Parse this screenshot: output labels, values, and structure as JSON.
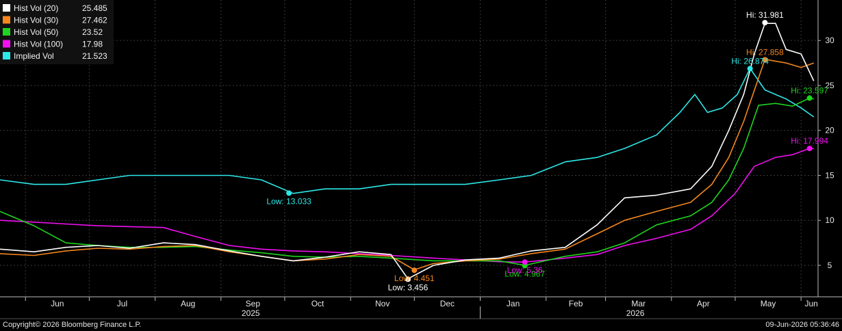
{
  "chart_data": {
    "type": "line",
    "x_range": [
      "2025-05-20",
      "2026-06-09"
    ],
    "ylim": [
      1.5,
      34.5
    ],
    "yticks": [
      5,
      10,
      15,
      20,
      25,
      30
    ],
    "grid": true,
    "legend_position": "top-left",
    "month_ticks": [
      {
        "label": "Jun",
        "date": "2025-06-01"
      },
      {
        "label": "Jul",
        "date": "2025-07-01"
      },
      {
        "label": "Aug",
        "date": "2025-08-01"
      },
      {
        "label": "Sep",
        "date": "2025-09-01"
      },
      {
        "label": "Oct",
        "date": "2025-10-01"
      },
      {
        "label": "Nov",
        "date": "2025-11-01"
      },
      {
        "label": "Dec",
        "date": "2025-12-01"
      },
      {
        "label": "Jan",
        "date": "2026-01-01"
      },
      {
        "label": "Feb",
        "date": "2026-02-01"
      },
      {
        "label": "Mar",
        "date": "2026-03-01"
      },
      {
        "label": "Apr",
        "date": "2026-04-01"
      },
      {
        "label": "May",
        "date": "2026-05-01"
      },
      {
        "label": "Jun",
        "date": "2026-06-01"
      }
    ],
    "year_labels": [
      {
        "label": "2025",
        "date": "2025-09-15"
      },
      {
        "label": "2026",
        "date": "2026-03-15"
      }
    ],
    "year_divider": "2026-01-01",
    "series": [
      {
        "name": "Hist Vol (20)",
        "last": "25.485",
        "color": "#ffffff",
        "x": [
          "2025-05-20",
          "2025-06-05",
          "2025-06-20",
          "2025-07-05",
          "2025-07-20",
          "2025-08-05",
          "2025-08-20",
          "2025-09-05",
          "2025-09-20",
          "2025-10-05",
          "2025-10-20",
          "2025-11-05",
          "2025-11-20",
          "2025-11-28",
          "2025-12-10",
          "2025-12-25",
          "2026-01-10",
          "2026-01-25",
          "2026-02-10",
          "2026-02-25",
          "2026-03-10",
          "2026-03-25",
          "2026-04-10",
          "2026-04-20",
          "2026-04-28",
          "2026-05-05",
          "2026-05-10",
          "2026-05-15",
          "2026-05-20",
          "2026-05-25",
          "2026-06-01",
          "2026-06-07"
        ],
        "y": [
          6.8,
          6.5,
          7.0,
          7.2,
          6.9,
          7.5,
          7.3,
          6.6,
          6.0,
          5.5,
          5.9,
          6.5,
          6.2,
          3.5,
          5.0,
          5.6,
          5.8,
          6.6,
          7.0,
          9.5,
          12.5,
          12.8,
          13.5,
          16.0,
          20.0,
          24.0,
          28.5,
          31.9,
          31.9,
          29.0,
          28.5,
          25.5
        ]
      },
      {
        "name": "Hist Vol (30)",
        "last": "27.462",
        "color": "#f5871f",
        "x": [
          "2025-05-20",
          "2025-06-05",
          "2025-06-20",
          "2025-07-05",
          "2025-07-20",
          "2025-08-05",
          "2025-08-20",
          "2025-09-05",
          "2025-09-20",
          "2025-10-05",
          "2025-10-20",
          "2025-11-05",
          "2025-11-20",
          "2025-12-01",
          "2025-12-10",
          "2025-12-25",
          "2026-01-10",
          "2026-01-25",
          "2026-02-10",
          "2026-02-25",
          "2026-03-10",
          "2026-03-25",
          "2026-04-10",
          "2026-04-20",
          "2026-04-28",
          "2026-05-05",
          "2026-05-15",
          "2026-05-25",
          "2026-06-01",
          "2026-06-07"
        ],
        "y": [
          6.3,
          6.1,
          6.6,
          6.9,
          6.8,
          7.1,
          7.2,
          6.5,
          6.0,
          5.5,
          5.7,
          6.2,
          6.0,
          4.5,
          5.2,
          5.5,
          5.7,
          6.3,
          6.8,
          8.5,
          10.0,
          11.0,
          12.0,
          14.0,
          17.0,
          21.0,
          27.9,
          27.5,
          27.0,
          27.5
        ]
      },
      {
        "name": "Hist Vol (50)",
        "last": "23.52",
        "color": "#1fd41f",
        "x": [
          "2025-05-20",
          "2025-06-05",
          "2025-06-20",
          "2025-07-05",
          "2025-07-20",
          "2025-08-05",
          "2025-08-20",
          "2025-09-05",
          "2025-09-20",
          "2025-10-05",
          "2025-10-20",
          "2025-11-05",
          "2025-11-20",
          "2025-12-10",
          "2025-12-25",
          "2026-01-10",
          "2026-01-22",
          "2026-02-10",
          "2026-02-25",
          "2026-03-10",
          "2026-03-25",
          "2026-04-10",
          "2026-04-20",
          "2026-04-28",
          "2026-05-05",
          "2026-05-12",
          "2026-05-20",
          "2026-05-28",
          "2026-06-05",
          "2026-06-07"
        ],
        "y": [
          11.0,
          9.4,
          7.5,
          7.2,
          7.0,
          7.0,
          7.1,
          6.7,
          6.4,
          6.0,
          5.9,
          6.0,
          5.8,
          5.5,
          5.5,
          5.5,
          5.0,
          6.0,
          6.5,
          7.5,
          9.5,
          10.5,
          12.0,
          14.5,
          18.0,
          22.8,
          23.0,
          22.7,
          23.6,
          23.5
        ]
      },
      {
        "name": "Hist Vol (100)",
        "last": "17.98",
        "color": "#f20ff2",
        "x": [
          "2025-05-20",
          "2025-06-05",
          "2025-06-20",
          "2025-07-05",
          "2025-07-20",
          "2025-08-05",
          "2025-08-20",
          "2025-09-05",
          "2025-09-20",
          "2025-10-05",
          "2025-10-20",
          "2025-11-05",
          "2025-11-20",
          "2025-12-10",
          "2025-12-25",
          "2026-01-10",
          "2026-01-22",
          "2026-02-10",
          "2026-02-25",
          "2026-03-10",
          "2026-03-25",
          "2026-04-10",
          "2026-04-20",
          "2026-05-01",
          "2026-05-10",
          "2026-05-20",
          "2026-05-28",
          "2026-06-05",
          "2026-06-07"
        ],
        "y": [
          10.0,
          9.8,
          9.6,
          9.4,
          9.3,
          9.2,
          8.2,
          7.2,
          6.8,
          6.6,
          6.5,
          6.3,
          6.1,
          5.8,
          5.6,
          5.4,
          5.36,
          5.8,
          6.2,
          7.2,
          8.0,
          9.0,
          10.5,
          13.0,
          16.0,
          17.0,
          17.3,
          18.0,
          17.98
        ]
      },
      {
        "name": "Implied Vol",
        "last": "21.523",
        "color": "#2ee8e8",
        "x": [
          "2025-05-20",
          "2025-06-05",
          "2025-06-20",
          "2025-07-05",
          "2025-07-20",
          "2025-08-05",
          "2025-08-20",
          "2025-09-05",
          "2025-09-20",
          "2025-10-05",
          "2025-10-20",
          "2025-11-05",
          "2025-11-20",
          "2025-12-10",
          "2025-12-25",
          "2026-01-10",
          "2026-01-25",
          "2026-02-10",
          "2026-02-25",
          "2026-03-10",
          "2026-03-25",
          "2026-04-05",
          "2026-04-12",
          "2026-04-18",
          "2026-04-25",
          "2026-05-02",
          "2026-05-08",
          "2026-05-15",
          "2026-05-25",
          "2026-06-01",
          "2026-06-07"
        ],
        "y": [
          14.5,
          14.0,
          14.0,
          14.5,
          15.0,
          15.0,
          15.0,
          15.0,
          14.5,
          13.0,
          13.5,
          13.5,
          14.0,
          14.0,
          14.0,
          14.5,
          15.0,
          16.5,
          17.0,
          18.0,
          19.5,
          22.0,
          24.0,
          22.0,
          22.5,
          24.0,
          26.9,
          24.5,
          23.5,
          22.5,
          21.5
        ]
      }
    ],
    "annotations": [
      {
        "text": "Hi: 31.981",
        "series": 0,
        "x": "2026-05-15",
        "y": 31.981
      },
      {
        "text": "Low: 3.456",
        "series": 0,
        "x": "2025-11-28",
        "y": 3.456
      },
      {
        "text": "Hi: 27.858",
        "series": 1,
        "x": "2026-05-15",
        "y": 27.858
      },
      {
        "text": "Low: 4.451",
        "series": 1,
        "x": "2025-12-01",
        "y": 4.451
      },
      {
        "text": "Hi: 23.597",
        "series": 2,
        "x": "2026-06-05",
        "y": 23.597
      },
      {
        "text": "Low: 4.967",
        "series": 2,
        "x": "2026-01-22",
        "y": 4.967
      },
      {
        "text": "Hi: 17.994",
        "series": 3,
        "x": "2026-06-05",
        "y": 17.994
      },
      {
        "text": "Low: 5.36",
        "series": 3,
        "x": "2026-01-22",
        "y": 5.36
      },
      {
        "text": "Hi: 26.874",
        "series": 4,
        "x": "2026-05-08",
        "y": 26.874
      },
      {
        "text": "Low: 13.033",
        "series": 4,
        "x": "2025-10-03",
        "y": 13.033
      }
    ]
  },
  "footer": {
    "copyright": "Copyright© 2026 Bloomberg Finance L.P.",
    "timestamp": "09-Jun-2026 05:36:46"
  }
}
